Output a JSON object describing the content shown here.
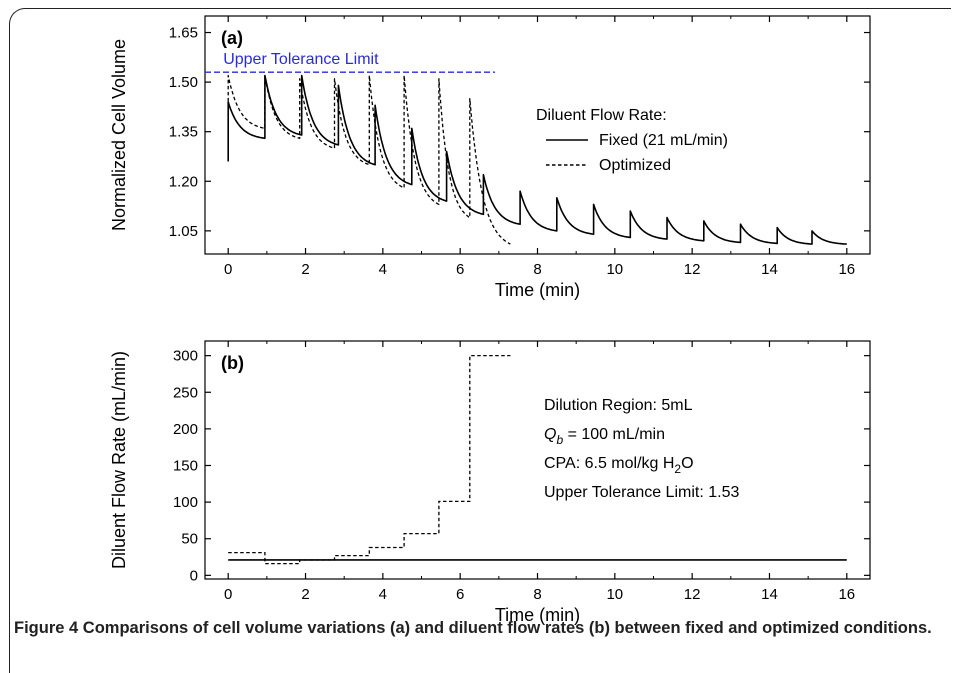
{
  "caption": {
    "label": "Figure 4",
    "text": "Comparisons of cell volume variations (a) and diluent flow rates (b) between fixed and optimized conditions."
  },
  "colors": {
    "axis": "#000000",
    "series": "#000000",
    "tolerance_line": "#2b2bd9"
  },
  "chart_data": [
    {
      "type": "line",
      "panel_label": "(a)",
      "xlabel": "Time (min)",
      "ylabel": "Normalized Cell Volume",
      "xlim": [
        -0.6,
        16.6
      ],
      "ylim": [
        0.98,
        1.7
      ],
      "xticks": [
        0,
        2,
        4,
        6,
        8,
        10,
        12,
        14,
        16
      ],
      "yticks": [
        1.05,
        1.2,
        1.35,
        1.5,
        1.65
      ],
      "ytick_labels": [
        "1.05",
        "1.20",
        "1.35",
        "1.50",
        "1.65"
      ],
      "grid": false,
      "legend": {
        "title": "Diluent Flow Rate:",
        "placement": "right"
      },
      "reference_line": {
        "label": "Upper Tolerance Limit",
        "y": 1.53,
        "x": [
          -0.6,
          6.9
        ]
      },
      "series": [
        {
          "name": "Fixed (21 mL/min)",
          "style": "solid",
          "pulses": [
            {
              "t": 0.0,
              "floor": 1.26,
              "peak": 1.44,
              "end": 1.33
            },
            {
              "t": 0.95,
              "floor": 1.33,
              "peak": 1.52,
              "end": 1.34
            },
            {
              "t": 1.9,
              "floor": 1.34,
              "peak": 1.52,
              "end": 1.31
            },
            {
              "t": 2.85,
              "floor": 1.31,
              "peak": 1.49,
              "end": 1.25
            },
            {
              "t": 3.8,
              "floor": 1.25,
              "peak": 1.43,
              "end": 1.19
            },
            {
              "t": 4.75,
              "floor": 1.19,
              "peak": 1.36,
              "end": 1.14
            },
            {
              "t": 5.65,
              "floor": 1.14,
              "peak": 1.29,
              "end": 1.1
            },
            {
              "t": 6.6,
              "floor": 1.1,
              "peak": 1.22,
              "end": 1.07
            },
            {
              "t": 7.55,
              "floor": 1.07,
              "peak": 1.17,
              "end": 1.05
            },
            {
              "t": 8.5,
              "floor": 1.05,
              "peak": 1.15,
              "end": 1.04
            },
            {
              "t": 9.45,
              "floor": 1.04,
              "peak": 1.13,
              "end": 1.03
            },
            {
              "t": 10.4,
              "floor": 1.03,
              "peak": 1.11,
              "end": 1.025
            },
            {
              "t": 11.35,
              "floor": 1.025,
              "peak": 1.09,
              "end": 1.02
            },
            {
              "t": 12.3,
              "floor": 1.02,
              "peak": 1.08,
              "end": 1.015
            },
            {
              "t": 13.25,
              "floor": 1.015,
              "peak": 1.07,
              "end": 1.012
            },
            {
              "t": 14.2,
              "floor": 1.012,
              "peak": 1.06,
              "end": 1.01
            },
            {
              "t": 15.1,
              "floor": 1.01,
              "peak": 1.05,
              "end": 1.01
            }
          ],
          "end_x": 16.0
        },
        {
          "name": "Optimized",
          "style": "dashed",
          "pulses": [
            {
              "t": 0.0,
              "floor": 1.26,
              "peak": 1.52,
              "end": 1.36
            },
            {
              "t": 0.95,
              "floor": 1.36,
              "peak": 1.52,
              "end": 1.33
            },
            {
              "t": 1.85,
              "floor": 1.33,
              "peak": 1.51,
              "end": 1.3
            },
            {
              "t": 2.75,
              "floor": 1.3,
              "peak": 1.51,
              "end": 1.25
            },
            {
              "t": 3.65,
              "floor": 1.25,
              "peak": 1.52,
              "end": 1.18
            },
            {
              "t": 4.55,
              "floor": 1.18,
              "peak": 1.52,
              "end": 1.13
            },
            {
              "t": 5.45,
              "floor": 1.13,
              "peak": 1.51,
              "end": 1.09
            },
            {
              "t": 6.25,
              "floor": 1.09,
              "peak": 1.45,
              "end": 1.01
            }
          ],
          "end_x": 7.3
        }
      ]
    },
    {
      "type": "line",
      "panel_label": "(b)",
      "xlabel": "Time (min)",
      "ylabel": "Diluent Flow Rate (mL/min)",
      "xlim": [
        -0.6,
        16.6
      ],
      "ylim": [
        -5,
        320
      ],
      "xticks": [
        0,
        2,
        4,
        6,
        8,
        10,
        12,
        14,
        16
      ],
      "yticks": [
        0,
        50,
        100,
        150,
        200,
        250,
        300
      ],
      "ytick_labels": [
        "0",
        "50",
        "100",
        "150",
        "200",
        "250",
        "300"
      ],
      "grid": false,
      "annotations": [
        {
          "type": "plain",
          "text": "Dilution Region: 5mL"
        },
        {
          "type": "qb",
          "symbol": "Q",
          "subscript": "b",
          "text": " = 100 mL/min"
        },
        {
          "type": "cpa",
          "text": "CPA: 6.5 mol/kg H",
          "subscript": "2",
          "suffix": "O"
        },
        {
          "type": "plain",
          "text": "Upper Tolerance Limit: 1.53"
        }
      ],
      "series": [
        {
          "name": "Fixed (21 mL/min)",
          "style": "solid",
          "x": [
            0,
            16
          ],
          "y": [
            21,
            21
          ]
        },
        {
          "name": "Optimized",
          "style": "dashed",
          "step_x": [
            0,
            0.95,
            1.85,
            2.75,
            3.65,
            4.55,
            5.45,
            6.25,
            7.3
          ],
          "step_y": [
            31,
            16,
            21,
            27,
            38,
            57,
            101,
            300
          ]
        }
      ]
    }
  ]
}
